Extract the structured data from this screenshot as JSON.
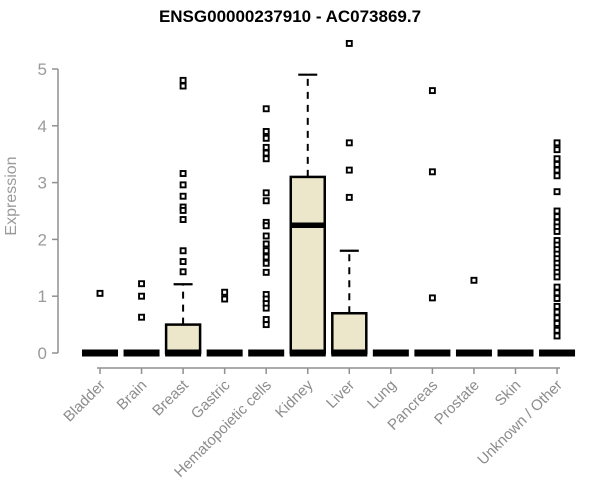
{
  "chart_data": {
    "type": "boxplot",
    "title": "ENSG00000237910 - AC073869.7",
    "ylabel": "Expression",
    "xlabel": "",
    "ylim": [
      0,
      5.5
    ],
    "yticks": [
      0,
      1,
      2,
      3,
      4,
      5
    ],
    "grid": false,
    "legend": false,
    "categories": [
      "Bladder",
      "Brain",
      "Breast",
      "Gastric",
      "Hematopoietic cells",
      "Kidney",
      "Liver",
      "Lung",
      "Pancreas",
      "Prostate",
      "Skin",
      "Unknown / Other"
    ],
    "series": [
      {
        "category": "Bladder",
        "q1": 0,
        "median": 0,
        "q3": 0,
        "whisker_low": 0,
        "whisker_high": 0,
        "outliers": [
          1.05
        ]
      },
      {
        "category": "Brain",
        "q1": 0,
        "median": 0,
        "q3": 0,
        "whisker_low": 0,
        "whisker_high": 0,
        "outliers": [
          1.22,
          1.0,
          0.63
        ]
      },
      {
        "category": "Breast",
        "q1": 0,
        "median": 0,
        "q3": 0.5,
        "whisker_low": 0,
        "whisker_high": 1.21,
        "outliers": [
          4.8,
          4.7,
          3.16,
          2.96,
          2.76,
          2.57,
          2.51,
          2.35,
          1.8,
          1.61,
          1.43
        ]
      },
      {
        "category": "Gastric",
        "q1": 0,
        "median": 0,
        "q3": 0,
        "whisker_low": 0,
        "whisker_high": 0,
        "outliers": [
          1.07,
          0.95
        ]
      },
      {
        "category": "Hematopoietic cells",
        "q1": 0,
        "median": 0,
        "q3": 0,
        "whisker_low": 0,
        "whisker_high": 0,
        "outliers": [
          4.3,
          3.9,
          3.78,
          3.62,
          3.52,
          3.42,
          2.82,
          2.68,
          2.3,
          2.24,
          2.06,
          1.92,
          1.8,
          1.69,
          1.58,
          1.42,
          1.03,
          0.95,
          0.87,
          0.79,
          0.59,
          0.5
        ]
      },
      {
        "category": "Kidney",
        "q1": 0,
        "median": 2.25,
        "q3": 3.1,
        "whisker_low": 0,
        "whisker_high": 4.9,
        "outliers": []
      },
      {
        "category": "Liver",
        "q1": 0,
        "median": 0,
        "q3": 0.7,
        "whisker_low": 0,
        "whisker_high": 1.8,
        "outliers": [
          5.45,
          3.7,
          3.22,
          2.74
        ]
      },
      {
        "category": "Lung",
        "q1": 0,
        "median": 0,
        "q3": 0,
        "whisker_low": 0,
        "whisker_high": 0,
        "outliers": []
      },
      {
        "category": "Pancreas",
        "q1": 0,
        "median": 0,
        "q3": 0,
        "whisker_low": 0,
        "whisker_high": 0,
        "outliers": [
          4.62,
          3.19,
          0.97
        ]
      },
      {
        "category": "Prostate",
        "q1": 0,
        "median": 0,
        "q3": 0,
        "whisker_low": 0,
        "whisker_high": 0,
        "outliers": [
          1.28
        ]
      },
      {
        "category": "Skin",
        "q1": 0,
        "median": 0,
        "q3": 0,
        "whisker_low": 0,
        "whisker_high": 0,
        "outliers": []
      },
      {
        "category": "Unknown / Other",
        "q1": 0,
        "median": 0,
        "q3": 0,
        "whisker_low": 0,
        "whisker_high": 0,
        "outliers": [
          3.7,
          3.58,
          3.42,
          3.32,
          3.22,
          3.12,
          2.84,
          2.5,
          2.4,
          2.3,
          2.22,
          2.14,
          1.98,
          1.9,
          1.82,
          1.74,
          1.66,
          1.58,
          1.5,
          1.42,
          1.34,
          1.16,
          1.06,
          0.96,
          0.82,
          0.72,
          0.62,
          0.52,
          0.4,
          0.3
        ]
      }
    ],
    "colors": {
      "box_fill": "#ECE7CA",
      "box_border": "#000000",
      "zero_bar": "#000000",
      "axis": "#909090",
      "tick_label": "#9a9a9a",
      "category_label": "#8c8c8c",
      "title": "#000000",
      "background": "#ffffff"
    }
  }
}
